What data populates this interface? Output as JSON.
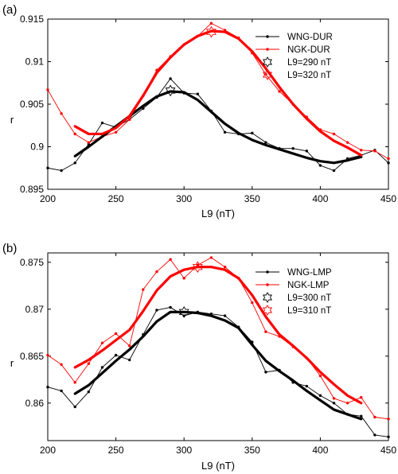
{
  "chart_data": [
    {
      "panel_label": "(a)",
      "type": "line",
      "xlabel": "L9 (nT)",
      "ylabel": "r",
      "xlim": [
        200,
        450
      ],
      "ylim": [
        0.895,
        0.915
      ],
      "xticks": [
        200,
        250,
        300,
        350,
        400,
        450
      ],
      "yticks": [
        0.895,
        0.9,
        0.905,
        0.91,
        0.915
      ],
      "ytick_labels": [
        "0.895",
        "0.9",
        "0.905",
        "0.91",
        "0.915"
      ],
      "grid": false,
      "legend_position": "top-right",
      "colors": {
        "black": "#000000",
        "red": "#ff0000"
      },
      "series": [
        {
          "name": "WNG-DUR",
          "color": "#000000",
          "style": "thin line with dot markers",
          "x": [
            200,
            210,
            220,
            230,
            240,
            250,
            260,
            270,
            280,
            290,
            300,
            310,
            320,
            330,
            340,
            350,
            360,
            370,
            380,
            390,
            400,
            410,
            420,
            430,
            440,
            450
          ],
          "y": [
            0.8975,
            0.8972,
            0.8981,
            0.9003,
            0.9028,
            0.9023,
            0.9032,
            0.9045,
            0.9058,
            0.908,
            0.9063,
            0.9062,
            0.9042,
            0.9017,
            0.9015,
            0.9016,
            0.9005,
            0.8998,
            0.8998,
            0.8995,
            0.8978,
            0.8972,
            0.8986,
            0.899,
            0.8996,
            0.8981
          ]
        },
        {
          "name": "NGK-DUR",
          "color": "#ff0000",
          "style": "thin line with dot markers",
          "x": [
            200,
            210,
            220,
            230,
            240,
            250,
            260,
            270,
            280,
            290,
            300,
            310,
            320,
            330,
            340,
            350,
            360,
            370,
            380,
            390,
            400,
            410,
            420,
            430,
            440,
            450
          ],
          "y": [
            0.9067,
            0.9039,
            0.9015,
            0.9005,
            0.9012,
            0.9017,
            0.9032,
            0.906,
            0.909,
            0.9106,
            0.912,
            0.913,
            0.9145,
            0.9137,
            0.9128,
            0.911,
            0.9085,
            0.9065,
            0.905,
            0.9035,
            0.902,
            0.9015,
            0.9005,
            0.8996,
            0.8995,
            0.8986
          ]
        },
        {
          "name": "WNG-DUR smoothed",
          "color": "#000000",
          "style": "thick line",
          "x": [
            220,
            230,
            240,
            250,
            260,
            270,
            280,
            290,
            300,
            310,
            320,
            330,
            340,
            350,
            360,
            370,
            380,
            390,
            400,
            410,
            420,
            430
          ],
          "y": [
            0.8989,
            0.9,
            0.9012,
            0.9024,
            0.9036,
            0.9048,
            0.9059,
            0.9065,
            0.9064,
            0.9055,
            0.9041,
            0.9027,
            0.9016,
            0.9008,
            0.9002,
            0.8997,
            0.8992,
            0.8987,
            0.8983,
            0.8981,
            0.8984,
            0.8988
          ]
        },
        {
          "name": "NGK-DUR smoothed",
          "color": "#ff0000",
          "style": "thick line",
          "x": [
            220,
            230,
            240,
            250,
            260,
            270,
            280,
            290,
            300,
            310,
            320,
            330,
            340,
            350,
            360,
            370,
            380,
            390,
            400,
            410,
            420,
            430
          ],
          "y": [
            0.9024,
            0.9015,
            0.9015,
            0.9022,
            0.9036,
            0.906,
            0.9087,
            0.9105,
            0.912,
            0.913,
            0.9136,
            0.9135,
            0.9127,
            0.9112,
            0.9092,
            0.907,
            0.905,
            0.9033,
            0.9018,
            0.9007,
            0.8999,
            0.899
          ]
        }
      ],
      "markers": [
        {
          "name": "L9=290 nT",
          "x": 290,
          "y": 0.9066,
          "color": "#000000",
          "shape": "hexagram"
        },
        {
          "name": "L9=320 nT",
          "x": 320,
          "y": 0.9135,
          "color": "#ff0000",
          "shape": "hexagram"
        }
      ],
      "legend": [
        {
          "label": "WNG-DUR",
          "kind": "line",
          "color": "#000000"
        },
        {
          "label": "NGK-DUR",
          "kind": "line",
          "color": "#ff0000"
        },
        {
          "label": "L9=290 nT",
          "kind": "star",
          "color": "#000000"
        },
        {
          "label": "L9=320 nT",
          "kind": "star",
          "color": "#ff0000"
        }
      ]
    },
    {
      "panel_label": "(b)",
      "type": "line",
      "xlabel": "L9 (nT)",
      "ylabel": "r",
      "xlim": [
        200,
        450
      ],
      "ylim": [
        0.856,
        0.876
      ],
      "xticks": [
        200,
        250,
        300,
        350,
        400,
        450
      ],
      "yticks": [
        0.86,
        0.865,
        0.87,
        0.875
      ],
      "ytick_labels": [
        "0.86",
        "0.865",
        "0.87",
        "0.875"
      ],
      "grid": false,
      "legend_position": "top-right",
      "colors": {
        "black": "#000000",
        "red": "#ff0000"
      },
      "series": [
        {
          "name": "WNG-LMP",
          "color": "#000000",
          "style": "thin line with dot markers",
          "x": [
            200,
            210,
            220,
            230,
            240,
            250,
            260,
            270,
            280,
            290,
            300,
            310,
            320,
            330,
            340,
            350,
            360,
            370,
            380,
            390,
            400,
            410,
            420,
            430,
            440,
            450
          ],
          "y": [
            0.8617,
            0.8613,
            0.8596,
            0.8612,
            0.8638,
            0.8651,
            0.8646,
            0.8673,
            0.8699,
            0.8702,
            0.8693,
            0.8697,
            0.8695,
            0.8693,
            0.8681,
            0.8665,
            0.8633,
            0.8635,
            0.8622,
            0.8618,
            0.8608,
            0.86,
            0.8588,
            0.8586,
            0.8566,
            0.8564
          ]
        },
        {
          "name": "NGK-LMP",
          "color": "#ff0000",
          "style": "thin line with dot markers",
          "x": [
            200,
            210,
            220,
            230,
            240,
            250,
            260,
            270,
            280,
            290,
            300,
            310,
            320,
            330,
            340,
            350,
            360,
            370,
            380,
            390,
            400,
            410,
            420,
            430,
            440,
            450
          ],
          "y": [
            0.8651,
            0.8641,
            0.8622,
            0.8642,
            0.8664,
            0.8674,
            0.8661,
            0.8721,
            0.874,
            0.8753,
            0.8733,
            0.8747,
            0.8755,
            0.8745,
            0.8733,
            0.8707,
            0.8676,
            0.8671,
            0.866,
            0.8648,
            0.8629,
            0.8605,
            0.86,
            0.8606,
            0.8585,
            0.8583
          ]
        },
        {
          "name": "WNG-LMP smoothed",
          "color": "#000000",
          "style": "thick line",
          "x": [
            220,
            230,
            240,
            250,
            260,
            270,
            280,
            290,
            300,
            310,
            320,
            330,
            340,
            350,
            360,
            370,
            380,
            390,
            400,
            410,
            420,
            430
          ],
          "y": [
            0.861,
            0.8619,
            0.8632,
            0.8645,
            0.8657,
            0.8671,
            0.8687,
            0.8697,
            0.8697,
            0.8696,
            0.8693,
            0.8688,
            0.868,
            0.8662,
            0.8645,
            0.8634,
            0.8624,
            0.8613,
            0.8603,
            0.8593,
            0.8588,
            0.8583
          ]
        },
        {
          "name": "NGK-LMP smoothed",
          "color": "#ff0000",
          "style": "thick line",
          "x": [
            220,
            230,
            240,
            250,
            260,
            270,
            280,
            290,
            300,
            310,
            320,
            330,
            340,
            350,
            360,
            370,
            380,
            390,
            400,
            410,
            420,
            430
          ],
          "y": [
            0.8638,
            0.8646,
            0.8656,
            0.8667,
            0.8678,
            0.8698,
            0.872,
            0.8735,
            0.8742,
            0.8745,
            0.8745,
            0.8742,
            0.8733,
            0.8715,
            0.8692,
            0.8673,
            0.8661,
            0.8648,
            0.8633,
            0.862,
            0.8608,
            0.86
          ]
        }
      ],
      "markers": [
        {
          "name": "L9=300 nT",
          "x": 300,
          "y": 0.8697,
          "color": "#000000",
          "shape": "hexagram"
        },
        {
          "name": "L9=310 nT",
          "x": 310,
          "y": 0.8745,
          "color": "#ff0000",
          "shape": "hexagram"
        }
      ],
      "legend": [
        {
          "label": "WNG-LMP",
          "kind": "line",
          "color": "#000000"
        },
        {
          "label": "NGK-LMP",
          "kind": "line",
          "color": "#ff0000"
        },
        {
          "label": "L9=300 nT",
          "kind": "star",
          "color": "#000000"
        },
        {
          "label": "L9=310 nT",
          "kind": "star",
          "color": "#ff0000"
        }
      ]
    }
  ]
}
